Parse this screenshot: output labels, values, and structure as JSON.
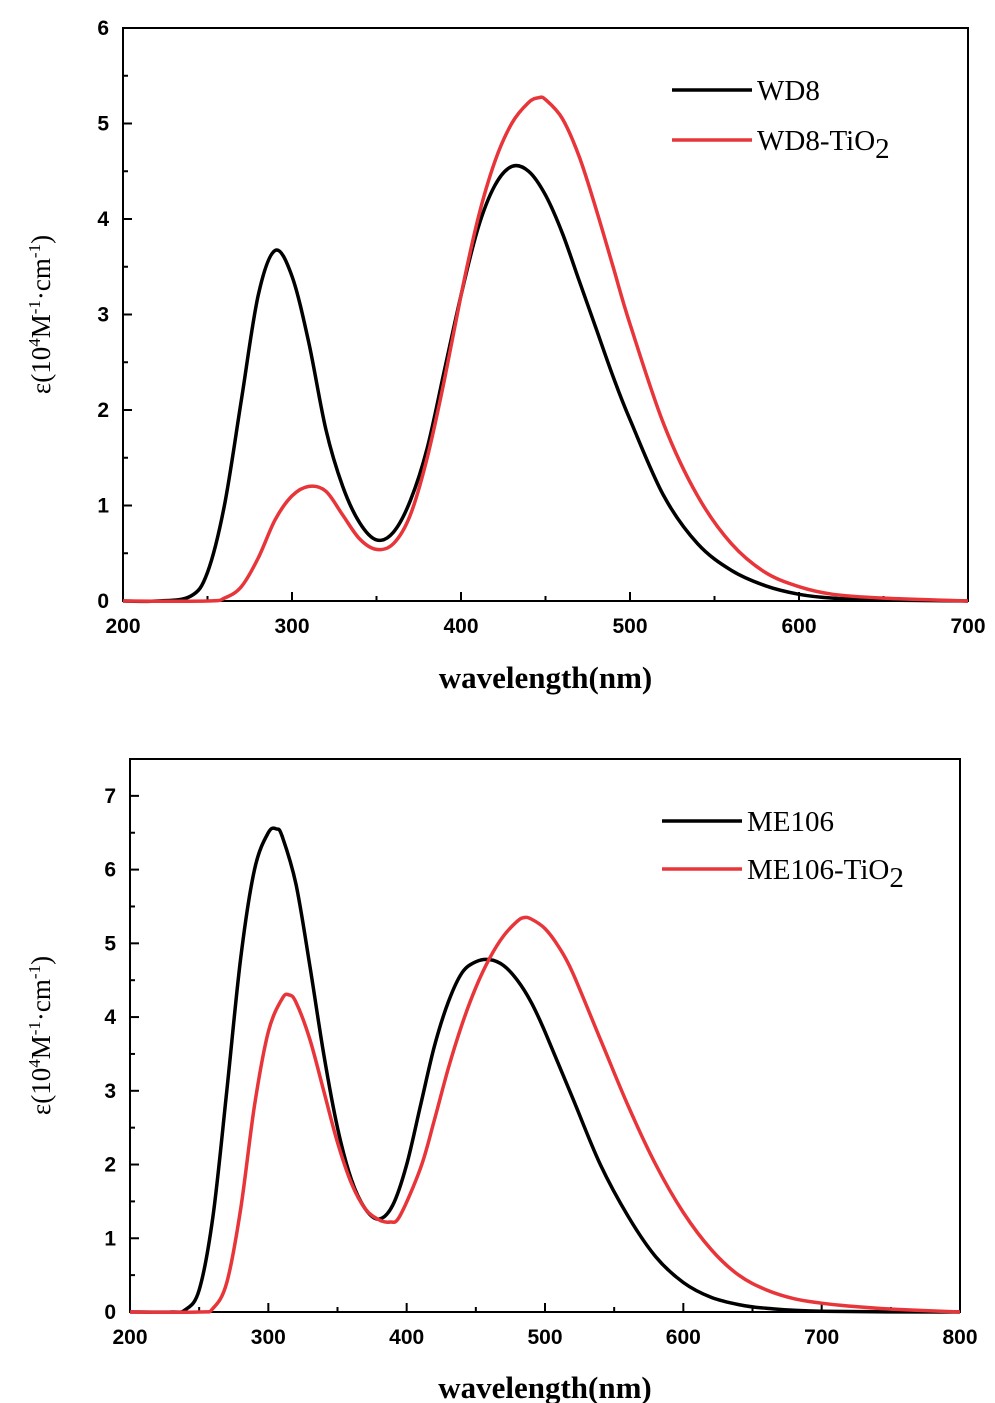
{
  "chart_data": [
    {
      "type": "line",
      "title": "",
      "xlabel": "wavelength(nm)",
      "ylabel": {
        "main": "ε(10",
        "sup1": "4",
        "mid": "M",
        "sup2": "-1",
        "tail": "·cm",
        "sup3": "-1",
        "close": ")"
      },
      "xlim": [
        200,
        700
      ],
      "ylim": [
        0,
        6
      ],
      "x_ticks": [
        200,
        300,
        400,
        500,
        600,
        700
      ],
      "y_ticks": [
        0,
        1,
        2,
        3,
        4,
        5,
        6
      ],
      "grid": false,
      "legend_position": "top-right",
      "series": [
        {
          "name": "WD8",
          "name_base": "WD8",
          "name_sub": "",
          "color": "#000000",
          "points": [
            [
              200,
              0
            ],
            [
              220,
              0
            ],
            [
              240,
              0.05
            ],
            [
              250,
              0.3
            ],
            [
              260,
              1.0
            ],
            [
              270,
              2.1
            ],
            [
              280,
              3.2
            ],
            [
              290,
              3.67
            ],
            [
              300,
              3.4
            ],
            [
              310,
              2.7
            ],
            [
              320,
              1.8
            ],
            [
              330,
              1.2
            ],
            [
              340,
              0.82
            ],
            [
              350,
              0.64
            ],
            [
              360,
              0.72
            ],
            [
              370,
              1.05
            ],
            [
              380,
              1.6
            ],
            [
              390,
              2.4
            ],
            [
              400,
              3.2
            ],
            [
              410,
              3.9
            ],
            [
              420,
              4.35
            ],
            [
              430,
              4.55
            ],
            [
              440,
              4.5
            ],
            [
              450,
              4.25
            ],
            [
              460,
              3.85
            ],
            [
              470,
              3.35
            ],
            [
              480,
              2.85
            ],
            [
              490,
              2.35
            ],
            [
              500,
              1.9
            ],
            [
              520,
              1.1
            ],
            [
              540,
              0.6
            ],
            [
              560,
              0.32
            ],
            [
              580,
              0.16
            ],
            [
              600,
              0.07
            ],
            [
              620,
              0.03
            ],
            [
              650,
              0.01
            ],
            [
              700,
              0
            ]
          ]
        },
        {
          "name": "WD8-TiO2",
          "name_base": "WD8-TiO",
          "name_sub": "2",
          "color": "#e8353a",
          "points": [
            [
              200,
              0
            ],
            [
              250,
              0
            ],
            [
              260,
              0.03
            ],
            [
              270,
              0.15
            ],
            [
              280,
              0.45
            ],
            [
              290,
              0.85
            ],
            [
              300,
              1.1
            ],
            [
              310,
              1.2
            ],
            [
              320,
              1.15
            ],
            [
              330,
              0.9
            ],
            [
              340,
              0.65
            ],
            [
              350,
              0.54
            ],
            [
              360,
              0.6
            ],
            [
              370,
              0.9
            ],
            [
              380,
              1.5
            ],
            [
              390,
              2.3
            ],
            [
              400,
              3.2
            ],
            [
              410,
              4.0
            ],
            [
              420,
              4.6
            ],
            [
              430,
              5.0
            ],
            [
              440,
              5.22
            ],
            [
              446,
              5.27
            ],
            [
              450,
              5.25
            ],
            [
              460,
              5.05
            ],
            [
              470,
              4.65
            ],
            [
              480,
              4.1
            ],
            [
              490,
              3.5
            ],
            [
              500,
              2.9
            ],
            [
              520,
              1.85
            ],
            [
              540,
              1.1
            ],
            [
              560,
              0.6
            ],
            [
              580,
              0.3
            ],
            [
              600,
              0.15
            ],
            [
              620,
              0.07
            ],
            [
              650,
              0.03
            ],
            [
              700,
              0
            ]
          ]
        }
      ]
    },
    {
      "type": "line",
      "title": "",
      "xlabel": "wavelength(nm)",
      "ylabel": {
        "main": "ε(10",
        "sup1": "4",
        "mid": "M",
        "sup2": "-1",
        "tail": "·cm",
        "sup3": "-1",
        "close": ")"
      },
      "xlim": [
        200,
        800
      ],
      "ylim": [
        0,
        7.5
      ],
      "x_ticks": [
        200,
        300,
        400,
        500,
        600,
        700,
        800
      ],
      "y_ticks": [
        0,
        1,
        2,
        3,
        4,
        5,
        6,
        7
      ],
      "grid": false,
      "legend_position": "top-right",
      "series": [
        {
          "name": "ME106",
          "name_base": "ME106",
          "name_sub": "",
          "color": "#000000",
          "points": [
            [
              200,
              0
            ],
            [
              230,
              0
            ],
            [
              240,
              0.03
            ],
            [
              250,
              0.3
            ],
            [
              260,
              1.3
            ],
            [
              270,
              3.0
            ],
            [
              280,
              4.8
            ],
            [
              290,
              6.0
            ],
            [
              300,
              6.5
            ],
            [
              306,
              6.55
            ],
            [
              310,
              6.45
            ],
            [
              320,
              5.8
            ],
            [
              330,
              4.7
            ],
            [
              340,
              3.5
            ],
            [
              350,
              2.5
            ],
            [
              360,
              1.8
            ],
            [
              370,
              1.4
            ],
            [
              380,
              1.26
            ],
            [
              390,
              1.45
            ],
            [
              400,
              2.0
            ],
            [
              410,
              2.8
            ],
            [
              420,
              3.6
            ],
            [
              430,
              4.2
            ],
            [
              440,
              4.6
            ],
            [
              450,
              4.75
            ],
            [
              460,
              4.78
            ],
            [
              470,
              4.7
            ],
            [
              480,
              4.5
            ],
            [
              490,
              4.2
            ],
            [
              500,
              3.8
            ],
            [
              520,
              2.9
            ],
            [
              540,
              2.0
            ],
            [
              560,
              1.3
            ],
            [
              580,
              0.75
            ],
            [
              600,
              0.4
            ],
            [
              620,
              0.2
            ],
            [
              640,
              0.1
            ],
            [
              660,
              0.05
            ],
            [
              700,
              0.01
            ],
            [
              800,
              0
            ]
          ]
        },
        {
          "name": "ME106-TiO2",
          "name_base": "ME106-TiO",
          "name_sub": "2",
          "color": "#e8353a",
          "points": [
            [
              200,
              0
            ],
            [
              250,
              0
            ],
            [
              260,
              0.05
            ],
            [
              270,
              0.4
            ],
            [
              280,
              1.4
            ],
            [
              290,
              2.8
            ],
            [
              300,
              3.8
            ],
            [
              310,
              4.25
            ],
            [
              315,
              4.3
            ],
            [
              320,
              4.2
            ],
            [
              330,
              3.7
            ],
            [
              340,
              3.0
            ],
            [
              350,
              2.3
            ],
            [
              360,
              1.75
            ],
            [
              370,
              1.4
            ],
            [
              380,
              1.25
            ],
            [
              388,
              1.22
            ],
            [
              395,
              1.3
            ],
            [
              410,
              1.95
            ],
            [
              420,
              2.6
            ],
            [
              430,
              3.3
            ],
            [
              440,
              3.9
            ],
            [
              450,
              4.4
            ],
            [
              460,
              4.8
            ],
            [
              470,
              5.1
            ],
            [
              480,
              5.3
            ],
            [
              485,
              5.35
            ],
            [
              490,
              5.33
            ],
            [
              500,
              5.2
            ],
            [
              510,
              4.95
            ],
            [
              520,
              4.6
            ],
            [
              540,
              3.7
            ],
            [
              560,
              2.8
            ],
            [
              580,
              2.0
            ],
            [
              600,
              1.35
            ],
            [
              620,
              0.85
            ],
            [
              640,
              0.5
            ],
            [
              660,
              0.3
            ],
            [
              680,
              0.18
            ],
            [
              700,
              0.12
            ],
            [
              720,
              0.08
            ],
            [
              750,
              0.04
            ],
            [
              800,
              0
            ]
          ]
        }
      ]
    }
  ]
}
